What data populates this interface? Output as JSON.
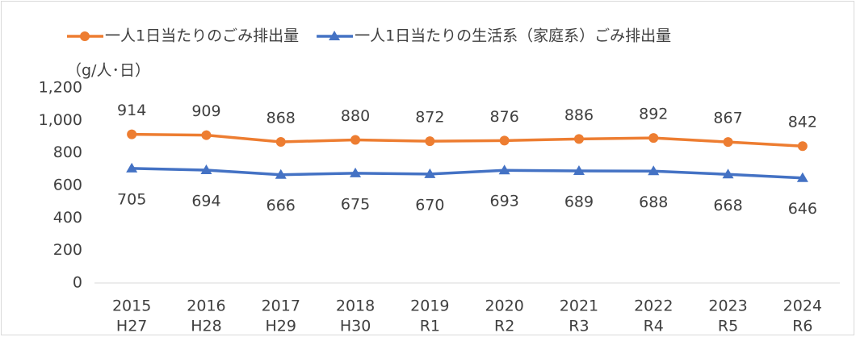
{
  "chart_data": {
    "type": "line",
    "y_unit_label": "（g/人･日）",
    "categories": [
      [
        "2015",
        "H27"
      ],
      [
        "2016",
        "H28"
      ],
      [
        "2017",
        "H29"
      ],
      [
        "2018",
        "H30"
      ],
      [
        "2019",
        "R1"
      ],
      [
        "2020",
        "R2"
      ],
      [
        "2021",
        "R3"
      ],
      [
        "2022",
        "R4"
      ],
      [
        "2023",
        "R5"
      ],
      [
        "2024",
        "R6"
      ]
    ],
    "series": [
      {
        "name": "一人1日当たりのごみ排出量",
        "color": "#ed7d31",
        "marker": "circle",
        "label_position": "above",
        "values": [
          914,
          909,
          868,
          880,
          872,
          876,
          886,
          892,
          867,
          842
        ]
      },
      {
        "name": "一人1日当たりの生活系（家庭系）ごみ排出量",
        "color": "#4472c4",
        "marker": "triangle",
        "label_position": "below",
        "values": [
          705,
          694,
          666,
          675,
          670,
          693,
          689,
          688,
          668,
          646
        ]
      }
    ],
    "ylim": [
      0,
      1200
    ],
    "yticks": [
      0,
      200,
      400,
      600,
      800,
      {
        "value": 1000,
        "label": "1,000"
      },
      {
        "value": 1200,
        "label": "1,200"
      }
    ],
    "grid": false,
    "legend": "top"
  }
}
